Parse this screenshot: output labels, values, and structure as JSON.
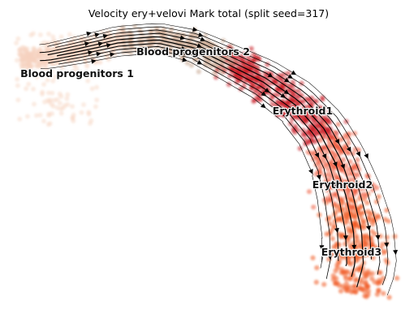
{
  "chart_data": {
    "type": "scatter",
    "title": "Velocity ery+velovi Mark total (split seed=317)",
    "xlabel": "",
    "ylabel": "",
    "axes_visible": false,
    "legend": "none (on-data labels)",
    "colors": {
      "background": "#ffffff",
      "Blood progenitors 1": "#f6d2bf",
      "Blood progenitors 2": "#c9a892",
      "Erythroid1": "#c81e27",
      "Erythroid2": "#ee5a3c",
      "Erythroid3": "#f05a22",
      "stream": "#000000"
    },
    "clusters": [
      {
        "name": "Blood progenitors 1",
        "label": "Blood progenitors 1"
      },
      {
        "name": "Blood progenitors 2",
        "label": "Blood progenitors 2"
      },
      {
        "name": "Erythroid1",
        "label": "Erythroid1"
      },
      {
        "name": "Erythroid2",
        "label": "Erythroid2"
      },
      {
        "name": "Erythroid3",
        "label": "Erythroid3"
      }
    ],
    "overlay": "RNA velocity streamlines with arrowheads, flowing from Blood progenitors 1 through Blood progenitors 2 into Erythroid1, Erythroid2 and Erythroid3"
  }
}
